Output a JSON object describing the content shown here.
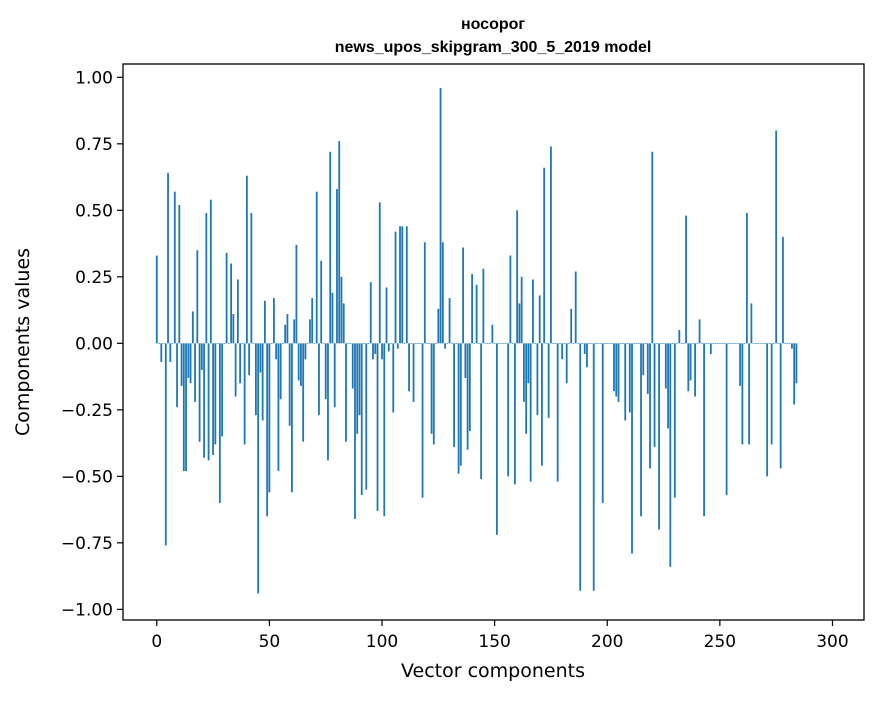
{
  "chart_data": {
    "type": "bar",
    "title": "носорог",
    "subtitle": "news_upos_skipgram_300_5_2019 model",
    "xlabel": "Vector components",
    "ylabel": "Components values",
    "xlim": [
      -15,
      314
    ],
    "ylim": [
      -1.04,
      1.05
    ],
    "xticks": [
      0,
      50,
      100,
      150,
      200,
      250,
      300
    ],
    "xtick_labels": [
      "0",
      "50",
      "100",
      "150",
      "200",
      "250",
      "300"
    ],
    "yticks": [
      1.0,
      0.75,
      0.5,
      0.25,
      0.0,
      -0.25,
      -0.5,
      -0.75,
      -1.0
    ],
    "ytick_labels": [
      "1.00",
      "0.75",
      "0.50",
      "0.25",
      "0.00",
      "−0.25",
      "−0.50",
      "−0.75",
      "−1.00"
    ],
    "bar_color": "#1f77b4",
    "grid": false,
    "values": [
      0.33,
      0.0,
      -0.07,
      0.0,
      -0.76,
      0.64,
      -0.07,
      0.0,
      0.57,
      -0.24,
      0.52,
      -0.16,
      -0.48,
      -0.48,
      -0.13,
      -0.15,
      0.12,
      -0.22,
      0.35,
      -0.37,
      -0.1,
      -0.43,
      0.49,
      -0.44,
      0.54,
      -0.42,
      -0.38,
      0.0,
      -0.6,
      -0.35,
      0.0,
      0.34,
      0.0,
      0.3,
      0.11,
      -0.2,
      0.24,
      -0.15,
      0.0,
      -0.38,
      0.63,
      -0.12,
      0.49,
      0.0,
      -0.27,
      -0.94,
      -0.11,
      -0.29,
      0.16,
      -0.65,
      -0.56,
      0.0,
      0.17,
      -0.06,
      -0.48,
      -0.21,
      0.0,
      0.07,
      0.11,
      -0.31,
      -0.56,
      0.09,
      0.37,
      -0.14,
      -0.16,
      -0.37,
      -0.06,
      0.0,
      0.09,
      0.17,
      0.0,
      0.57,
      -0.27,
      0.31,
      0.0,
      -0.21,
      -0.44,
      0.72,
      0.19,
      -0.24,
      0.58,
      0.76,
      0.25,
      0.15,
      -0.37,
      0.0,
      0.0,
      -0.17,
      -0.66,
      -0.34,
      -0.27,
      -0.57,
      0.0,
      -0.55,
      0.0,
      0.23,
      -0.06,
      -0.04,
      -0.63,
      0.53,
      -0.06,
      -0.65,
      0.21,
      -0.03,
      0.0,
      -0.26,
      0.42,
      -0.02,
      0.44,
      0.44,
      0.0,
      0.44,
      -0.18,
      0.0,
      -0.22,
      0.0,
      0.0,
      0.0,
      -0.58,
      0.38,
      0.0,
      0.0,
      -0.34,
      -0.38,
      0.0,
      0.13,
      0.96,
      0.38,
      -0.02,
      0.0,
      0.17,
      0.0,
      -0.39,
      0.0,
      -0.49,
      -0.46,
      0.36,
      -0.13,
      -0.4,
      -0.33,
      0.26,
      0.0,
      0.22,
      0.0,
      -0.51,
      0.28,
      0.0,
      0.0,
      0.0,
      0.07,
      0.0,
      -0.72,
      0.0,
      0.0,
      0.0,
      0.0,
      -0.5,
      0.33,
      0.0,
      -0.53,
      0.5,
      0.15,
      0.25,
      -0.22,
      -0.34,
      -0.15,
      -0.52,
      0.24,
      0.0,
      -0.27,
      0.18,
      -0.46,
      0.66,
      0.0,
      -0.28,
      0.74,
      0.0,
      0.0,
      -0.52,
      0.0,
      -0.06,
      0.0,
      -0.15,
      0.0,
      0.13,
      0.0,
      0.27,
      0.0,
      -0.93,
      0.0,
      -0.04,
      -0.09,
      0.0,
      0.0,
      -0.93,
      0.0,
      0.0,
      0.0,
      -0.6,
      0.0,
      0.0,
      0.0,
      0.0,
      -0.18,
      -0.2,
      -0.22,
      0.0,
      0.0,
      -0.29,
      0.0,
      -0.26,
      -0.79,
      0.0,
      0.0,
      0.0,
      -0.65,
      -0.12,
      0.0,
      -0.19,
      -0.47,
      0.72,
      -0.39,
      0.0,
      -0.7,
      0.0,
      0.0,
      -0.17,
      -0.32,
      -0.84,
      0.0,
      -0.58,
      0.0,
      0.05,
      0.0,
      0.0,
      0.48,
      -0.18,
      -0.14,
      0.0,
      -0.2,
      0.0,
      0.09,
      0.0,
      -0.65,
      0.0,
      0.0,
      -0.04,
      0.0,
      0.0,
      0.0,
      0.0,
      0.0,
      0.0,
      -0.57,
      0.0,
      0.0,
      0.0,
      0.0,
      0.0,
      -0.16,
      -0.38,
      0.0,
      0.49,
      -0.38,
      0.15,
      0.0,
      0.0,
      0.0,
      0.0,
      0.0,
      0.0,
      -0.5,
      0.0,
      -0.38,
      0.0,
      0.8,
      0.0,
      -0.47,
      0.4,
      0.0,
      0.0,
      0.0,
      -0.02,
      -0.23,
      -0.15
    ]
  }
}
